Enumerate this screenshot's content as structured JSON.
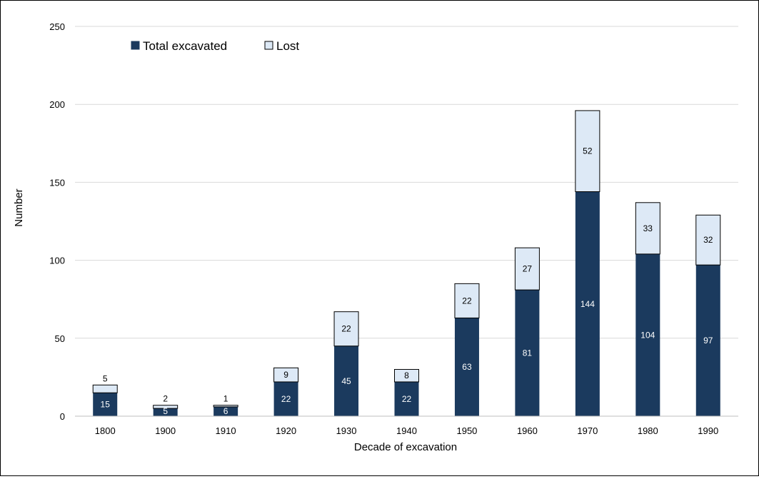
{
  "chart_data": {
    "type": "bar",
    "stacked": true,
    "categories": [
      "1800",
      "1900",
      "1910",
      "1920",
      "1930",
      "1940",
      "1950",
      "1960",
      "1970",
      "1980",
      "1990"
    ],
    "series": [
      {
        "name": "Total excavated",
        "values": [
          15,
          5,
          6,
          22,
          45,
          22,
          63,
          81,
          144,
          104,
          97
        ],
        "color": "#1b3a5e",
        "label_color": "#ffffff"
      },
      {
        "name": "Lost",
        "values": [
          5,
          2,
          1,
          9,
          22,
          8,
          22,
          27,
          52,
          33,
          32
        ],
        "color": "#dde9f6",
        "label_color": "#000000"
      }
    ],
    "xlabel": "Decade of excavation",
    "ylabel": "Number",
    "ylim": [
      0,
      250
    ],
    "yticks": [
      "0",
      "50",
      "100",
      "150",
      "200",
      "250"
    ],
    "grid": true,
    "legend": "top-left"
  }
}
